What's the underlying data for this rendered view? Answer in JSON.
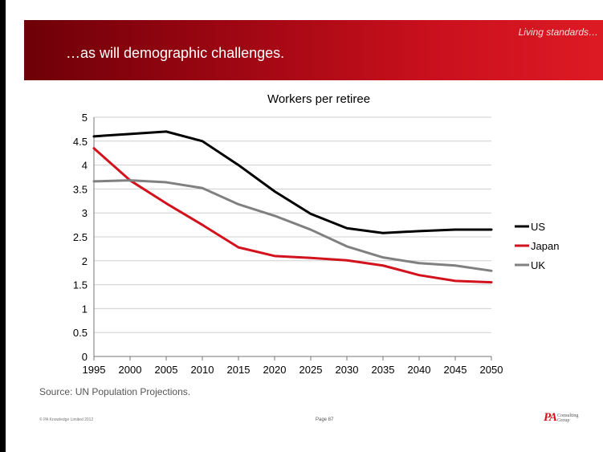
{
  "header": {
    "kicker": "Living standards…",
    "title": "…as will demographic challenges."
  },
  "chart_data": {
    "type": "line",
    "title": "Workers per retiree",
    "xlabel": "",
    "ylabel": "",
    "x": [
      1995,
      2000,
      2005,
      2010,
      2015,
      2020,
      2025,
      2030,
      2035,
      2040,
      2045,
      2050
    ],
    "ylim": [
      0,
      5
    ],
    "yticks": [
      "0",
      "0.5",
      "1",
      "1.5",
      "2",
      "2.5",
      "3",
      "3.5",
      "4",
      "4.5",
      "5"
    ],
    "grid": "horizontal",
    "legend_position": "right",
    "series": [
      {
        "name": "US",
        "color": "#000000",
        "values": [
          4.6,
          4.65,
          4.7,
          4.5,
          4.0,
          3.45,
          2.98,
          2.68,
          2.58,
          2.62,
          2.65,
          2.65
        ]
      },
      {
        "name": "Japan",
        "color": "#d2121d",
        "values": [
          4.35,
          3.68,
          3.2,
          2.75,
          2.28,
          2.1,
          2.06,
          2.01,
          1.9,
          1.7,
          1.58,
          1.55
        ]
      },
      {
        "name": "UK",
        "color": "#808080",
        "values": [
          3.66,
          3.68,
          3.64,
          3.52,
          3.18,
          2.94,
          2.65,
          2.3,
          2.07,
          1.95,
          1.9,
          1.79
        ]
      }
    ]
  },
  "source_note": "Source: UN Population Projections.",
  "footer": {
    "copyright": "© PA Knowledge Limited 2012",
    "page": "Page 87",
    "logo_mark": "PA",
    "logo_text": "Consulting Group"
  }
}
